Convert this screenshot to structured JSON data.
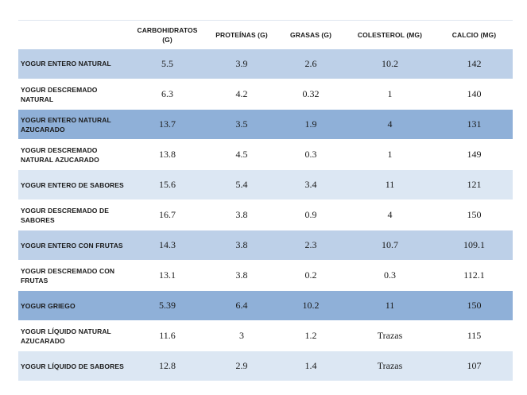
{
  "table": {
    "columns": [
      "",
      "CARBOHIDRATOS (G)",
      "PROTEÍNAS (G)",
      "GRASAS (G)",
      "COLESTEROL (MG)",
      "CALCIO (MG)"
    ],
    "rows": [
      {
        "label": "YOGUR ENTERO NATURAL",
        "values": [
          "5.5",
          "3.9",
          "2.6",
          "10.2",
          "142"
        ]
      },
      {
        "label": "YOGUR DESCREMADO NATURAL",
        "values": [
          "6.3",
          "4.2",
          "0.32",
          "1",
          "140"
        ]
      },
      {
        "label": "YOGUR ENTERO NATURAL AZUCARADO",
        "values": [
          "13.7",
          "3.5",
          "1.9",
          "4",
          "131"
        ]
      },
      {
        "label": "YOGUR DESCREMADO NATURAL AZUCARADO",
        "values": [
          "13.8",
          "4.5",
          "0.3",
          "1",
          "149"
        ]
      },
      {
        "label": "YOGUR ENTERO DE SABORES",
        "values": [
          "15.6",
          "5.4",
          "3.4",
          "11",
          "121"
        ]
      },
      {
        "label": "YOGUR DESCREMADO DE SABORES",
        "values": [
          "16.7",
          "3.8",
          "0.9",
          "4",
          "150"
        ]
      },
      {
        "label": "YOGUR ENTERO CON FRUTAS",
        "values": [
          "14.3",
          "3.8",
          "2.3",
          "10.7",
          "109.1"
        ]
      },
      {
        "label": "YOGUR DESCREMADO CON FRUTAS",
        "values": [
          "13.1",
          "3.8",
          "0.2",
          "0.3",
          "112.1"
        ]
      },
      {
        "label": "YOGUR GRIEGO",
        "values": [
          "5.39",
          "6.4",
          "10.2",
          "11",
          "150"
        ]
      },
      {
        "label": "YOGUR LÍQUIDO NATURAL AZUCARADO",
        "values": [
          "11.6",
          "3",
          "1.2",
          "Trazas",
          "115"
        ]
      },
      {
        "label": "YOGUR LÍQUIDO DE SABORES",
        "values": [
          "12.8",
          "2.9",
          "1.4",
          "Trazas",
          "107"
        ]
      }
    ]
  },
  "colors": {
    "band_mid": "#bdd0e8",
    "band_strong": "#8fb0d8",
    "band_light": "#dce7f3",
    "band_white": "#ffffff"
  }
}
